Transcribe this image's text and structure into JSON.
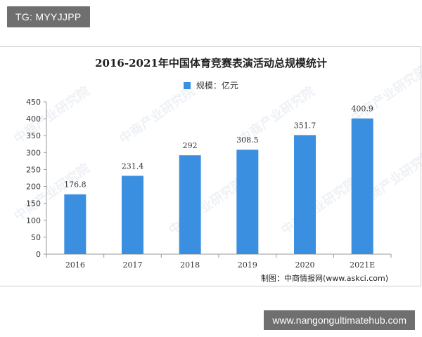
{
  "tag_badge": "TG: MYYJJPP",
  "site_badge": "www.nangongultimatehub.com",
  "source": "制图：中商情报网(www.askci.com)",
  "watermark": "中商产业研究院",
  "colors": {
    "bar": "#3b8fe0",
    "axis": "#999999",
    "grid": "#e6e6e6"
  },
  "chart_data": {
    "type": "bar",
    "title": "2016-2021年中国体育竞赛表演活动总规模统计",
    "legend": {
      "position": "top"
    },
    "categories": [
      "2016",
      "2017",
      "2018",
      "2019",
      "2020",
      "2021E"
    ],
    "series": [
      {
        "name": "规模：亿元",
        "values": [
          176.8,
          231.4,
          292,
          308.5,
          351.7,
          400.9
        ]
      }
    ],
    "data_labels": [
      "176.8",
      "231.4",
      "292",
      "308.5",
      "351.7",
      "400.9"
    ],
    "yticks": [
      "0",
      "50",
      "100",
      "150",
      "200",
      "250",
      "300",
      "350",
      "400",
      "450"
    ],
    "ylim": [
      0,
      450
    ],
    "grid": false
  }
}
